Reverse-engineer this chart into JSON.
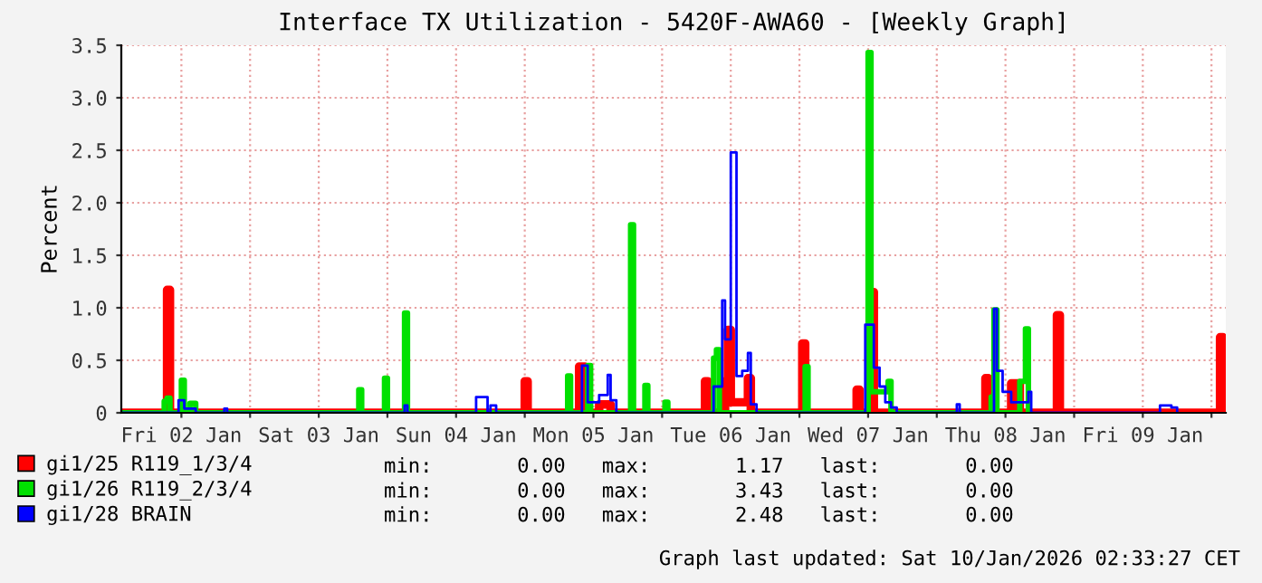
{
  "chart_data": {
    "type": "step",
    "title": "Interface TX Utilization - 5420F-AWA60 - [Weekly Graph]",
    "ylabel": "Percent",
    "xlim": [
      "2026-01-02T01:30",
      "2026-01-10T02:30"
    ],
    "ylim": [
      0,
      3.5
    ],
    "yticks": [
      0,
      {
        "value": 0.5,
        "label": "0.5"
      },
      {
        "value": 1,
        "label": "1.0"
      },
      {
        "value": 1.5,
        "label": "1.5"
      },
      {
        "value": 2,
        "label": "2.0"
      },
      {
        "value": 2.5,
        "label": "2.5"
      },
      {
        "value": 3,
        "label": "3.0"
      },
      {
        "value": 3.5,
        "label": "3.5"
      }
    ],
    "xticks": [
      {
        "value": "2026-01-02T12:00",
        "label": "Fri 02 Jan"
      },
      {
        "value": "2026-01-03T00:00",
        "label": null
      },
      {
        "value": "2026-01-03T12:00",
        "label": "Sat 03 Jan"
      },
      {
        "value": "2026-01-04T00:00",
        "label": null
      },
      {
        "value": "2026-01-04T12:00",
        "label": "Sun 04 Jan"
      },
      {
        "value": "2026-01-05T00:00",
        "label": null
      },
      {
        "value": "2026-01-05T12:00",
        "label": "Mon 05 Jan"
      },
      {
        "value": "2026-01-06T00:00",
        "label": null
      },
      {
        "value": "2026-01-06T12:00",
        "label": "Tue 06 Jan"
      },
      {
        "value": "2026-01-07T00:00",
        "label": null
      },
      {
        "value": "2026-01-07T12:00",
        "label": "Wed 07 Jan"
      },
      {
        "value": "2026-01-08T00:00",
        "label": null
      },
      {
        "value": "2026-01-08T12:00",
        "label": "Thu 08 Jan"
      },
      {
        "value": "2026-01-09T00:00",
        "label": null
      },
      {
        "value": "2026-01-09T12:00",
        "label": "Fri 09 Jan"
      },
      {
        "value": "2026-01-10T00:00",
        "label": null
      }
    ],
    "grid": true,
    "legend": "bottom",
    "series": [
      {
        "name": "gi1/25 R119_1/3/4",
        "color": "#ff0000",
        "x": [
          "2026-01-02T01:30",
          "2026-01-02T09:30",
          "2026-01-02T10:00",
          "2026-01-05T00:00",
          "2026-01-05T00:30",
          "2026-01-05T09:30",
          "2026-01-05T10:30",
          "2026-01-05T13:00",
          "2026-01-05T15:00",
          "2026-01-06T07:30",
          "2026-01-06T08:00",
          "2026-01-06T11:00",
          "2026-01-06T11:30",
          "2026-01-06T12:00",
          "2026-01-06T15:00",
          "2026-01-06T15:30",
          "2026-01-07T00:30",
          "2026-01-07T01:00",
          "2026-01-07T10:00",
          "2026-01-07T10:30",
          "2026-01-07T12:30",
          "2026-01-07T13:00",
          "2026-01-08T08:30",
          "2026-01-08T09:00",
          "2026-01-08T13:00",
          "2026-01-08T14:30",
          "2026-01-08T21:00",
          "2026-01-08T21:30",
          "2026-01-10T01:30",
          "2026-01-10T02:00"
        ],
        "values": [
          0,
          1.17,
          0,
          0.3,
          0,
          0.44,
          0,
          0.08,
          0,
          0.3,
          0,
          0.3,
          0.79,
          0.1,
          0.33,
          0,
          0.66,
          0,
          0.22,
          0,
          1.15,
          0,
          0.33,
          0,
          0.28,
          0,
          0.93,
          0,
          0.72,
          0
        ]
      },
      {
        "name": "gi1/26 R119_2/3/4",
        "color": "#00e000",
        "x": [
          "2026-01-02T01:30",
          "2026-01-02T09:00",
          "2026-01-02T09:30",
          "2026-01-02T10:00",
          "2026-01-02T12:00",
          "2026-01-02T12:30",
          "2026-01-02T13:30",
          "2026-01-02T14:30",
          "2026-01-03T19:00",
          "2026-01-03T19:30",
          "2026-01-03T23:30",
          "2026-01-04T00:00",
          "2026-01-04T03:00",
          "2026-01-04T03:30",
          "2026-01-05T07:30",
          "2026-01-05T08:00",
          "2026-01-05T11:00",
          "2026-01-05T11:30",
          "2026-01-05T18:30",
          "2026-01-05T19:00",
          "2026-01-05T21:00",
          "2026-01-05T21:30",
          "2026-01-06T00:30",
          "2026-01-06T01:00",
          "2026-01-06T09:00",
          "2026-01-06T09:30",
          "2026-01-06T10:00",
          "2026-01-07T01:00",
          "2026-01-07T01:30",
          "2026-01-07T12:00",
          "2026-01-07T12:30",
          "2026-01-07T15:30",
          "2026-01-07T16:00",
          "2026-01-08T09:30",
          "2026-01-08T10:00",
          "2026-01-08T10:30",
          "2026-01-08T14:30",
          "2026-01-08T15:30",
          "2026-01-08T16:00"
        ],
        "values": [
          0,
          0.11,
          0.14,
          0,
          0.31,
          0,
          0.09,
          0,
          0.22,
          0,
          0.33,
          0,
          0.95,
          0,
          0.35,
          0,
          0.45,
          0,
          1.79,
          0,
          0.26,
          0,
          0.1,
          0,
          0.52,
          0.6,
          0,
          0.44,
          0,
          3.43,
          0.2,
          0.3,
          0,
          0.15,
          0.98,
          0,
          0.3,
          0.8,
          0
        ]
      },
      {
        "name": "gi1/28 BRAIN",
        "color": "#0000ff",
        "x": [
          "2026-01-02T01:30",
          "2026-01-02T11:30",
          "2026-01-02T12:30",
          "2026-01-02T14:30",
          "2026-01-02T19:30",
          "2026-01-02T20:00",
          "2026-01-04T03:00",
          "2026-01-04T03:30",
          "2026-01-04T15:30",
          "2026-01-04T17:30",
          "2026-01-04T18:00",
          "2026-01-04T19:00",
          "2026-01-05T10:00",
          "2026-01-05T11:00",
          "2026-01-05T13:00",
          "2026-01-05T14:30",
          "2026-01-05T15:00",
          "2026-01-05T16:00",
          "2026-01-06T09:00",
          "2026-01-06T10:30",
          "2026-01-06T11:00",
          "2026-01-06T12:00",
          "2026-01-06T13:00",
          "2026-01-06T14:00",
          "2026-01-06T15:00",
          "2026-01-06T15:30",
          "2026-01-06T16:30",
          "2026-01-07T11:30",
          "2026-01-07T13:00",
          "2026-01-07T14:00",
          "2026-01-07T15:00",
          "2026-01-07T16:00",
          "2026-01-07T17:00",
          "2026-01-08T03:30",
          "2026-01-08T04:00",
          "2026-01-08T10:00",
          "2026-01-08T10:30",
          "2026-01-08T11:30",
          "2026-01-08T13:00",
          "2026-01-08T16:00",
          "2026-01-08T16:30",
          "2026-01-09T15:00",
          "2026-01-09T17:00",
          "2026-01-09T18:00"
        ],
        "values": [
          0,
          0.12,
          0.04,
          0,
          0.04,
          0,
          0.07,
          0,
          0.15,
          0,
          0.07,
          0,
          0.45,
          0.1,
          0.17,
          0.36,
          0.12,
          0,
          0.25,
          1.07,
          0.7,
          2.48,
          0.35,
          0.4,
          0.57,
          0.08,
          0,
          0.84,
          0.43,
          0.25,
          0.1,
          0.05,
          0,
          0.08,
          0,
          0.99,
          0.4,
          0.2,
          0.1,
          0.2,
          0,
          0.07,
          0.05,
          0
        ]
      }
    ],
    "annotations": [
      "min:       0.00   max:       1.17   last:       0.00",
      "min:       0.00   max:       3.43   last:       0.00",
      "min:       0.00   max:       2.48   last:       0.00",
      "Graph last updated: Sat 10/Jan/2026 02:33:27 CET"
    ]
  }
}
